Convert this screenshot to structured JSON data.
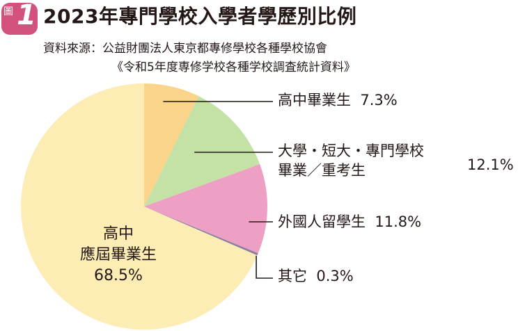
{
  "figure": {
    "badge_label": "圖",
    "badge_number": "1",
    "title": "2023年專門學校入學者學歷別比例",
    "source_line1": "資料來源：公益財團法人東京都專修學校各種學校協會",
    "source_line2": "《令和5年度専修学校各種学校調査統計資料》"
  },
  "colors": {
    "badge": "#d3527d",
    "highschool": "#fdecb4",
    "vocational_hs": "#f9d48a",
    "university": "#c5e2a6",
    "foreign": "#ee9fc4",
    "other": "#8a7fa3"
  },
  "chart_data": {
    "type": "pie",
    "title": "2023年專門學校入學者學歷別比例",
    "unit": "%",
    "slices": [
      {
        "name": "高中畢業生",
        "value": 7.3,
        "label_text": "高中畢業生",
        "value_text": "7.3%",
        "color": "#f9d48a"
      },
      {
        "name": "大學・短大・專門學校畢業／重考生",
        "value": 12.1,
        "label_line1": "大學・短大・專門學校",
        "label_line2": "畢業／重考生",
        "value_text": "12.1%",
        "color": "#c5e2a6"
      },
      {
        "name": "外國人留學生",
        "value": 11.8,
        "label_text": "外國人留學生",
        "value_text": "11.8%",
        "color": "#ee9fc4"
      },
      {
        "name": "其它",
        "value": 0.3,
        "label_text": "其它",
        "value_text": "0.3%",
        "color": "#8a7fa3"
      },
      {
        "name": "高中應屆畢業生",
        "value": 68.5,
        "label_line1": "高中",
        "label_line2": "應屆畢業生",
        "value_text": "68.5%",
        "color": "#fdecb4"
      }
    ]
  }
}
